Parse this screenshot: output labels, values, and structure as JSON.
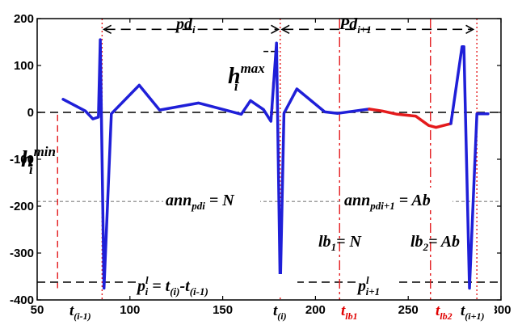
{
  "chart_data": {
    "type": "line",
    "xlim": [
      50,
      300
    ],
    "ylim": [
      -400,
      200
    ],
    "xticks": [
      50,
      100,
      150,
      200,
      250,
      300
    ],
    "yticks": [
      200,
      100,
      0,
      -100,
      -200,
      -300,
      -400
    ],
    "grid": false,
    "colors": {
      "signal": "#1f1fd8",
      "abnormal": "#e41a1c",
      "marker_red": "#e41a1c",
      "black": "#000000"
    },
    "series": [
      {
        "color": "#1f1fd8",
        "x": [
          64,
          76,
          80,
          83,
          84,
          86,
          90,
          105,
          116,
          137,
          160,
          165,
          172,
          176,
          179,
          181,
          183,
          190,
          205,
          212,
          229
        ],
        "y": [
          28,
          3,
          -14,
          -10,
          155,
          -375,
          -3,
          58,
          5,
          20,
          -4,
          25,
          6,
          -19,
          148,
          -379,
          -2,
          50,
          1,
          -2,
          7
        ]
      },
      {
        "color": "#e41a1c",
        "x": [
          229,
          236,
          244,
          254,
          261,
          265,
          273
        ],
        "y": [
          7,
          3,
          -4,
          -8,
          -28,
          -32,
          -24
        ]
      },
      {
        "color": "#1f1fd8",
        "x": [
          273,
          279,
          280,
          283,
          287,
          293
        ],
        "y": [
          -24,
          140,
          140,
          -375,
          -3,
          -3
        ]
      }
    ],
    "baseline_y": 0,
    "dashed_levels": [
      {
        "y": -190,
        "style": "gray"
      },
      {
        "y": -362,
        "style": "black"
      }
    ],
    "red_verticals": [
      {
        "x": 61,
        "y_from": -5,
        "y_to": -375,
        "style": "dashed"
      },
      {
        "x": 85,
        "y_from": 200,
        "y_to": -400,
        "style": "dotted"
      },
      {
        "x": 181,
        "y_from": 200,
        "y_to": -400,
        "style": "dotted"
      },
      {
        "x": 177,
        "y_from": 65,
        "y_to": -5,
        "style": "dashed"
      },
      {
        "x": 213,
        "y_from": 200,
        "y_to": -400,
        "style": "dashdot"
      },
      {
        "x": 262,
        "y_from": 200,
        "y_to": -400,
        "style": "dashdot"
      },
      {
        "x": 287,
        "y_from": 200,
        "y_to": -400,
        "style": "dotted"
      }
    ],
    "h_max_bar": {
      "x1": 172,
      "x2": 180,
      "y": 130
    },
    "intervals": [
      {
        "x1": 86,
        "x2": 180,
        "y": 177
      },
      {
        "x1": 182,
        "x2": 285,
        "y": 177
      }
    ],
    "annotations": {
      "pd_i": "pd",
      "pd_i_sub": "i",
      "Pd_i1": "Pd",
      "Pd_i1_sub": "i+1",
      "h_max": "h",
      "h_max_sub": "i",
      "h_max_sup": "max",
      "h_min": "h",
      "h_min_sub": "i",
      "h_min_sup": "min",
      "ann_pdi": "ann",
      "ann_pdi_sub": "pdi",
      "ann_pdi_eq": " = N",
      "ann_pdi1": "ann",
      "ann_pdi1_sub": "pdi+1",
      "ann_pdi1_eq": " = Ab",
      "lb1": "lb",
      "lb1_sub": "1",
      "lb1_eq": "= N",
      "lb2": "lb",
      "lb2_sub": "2",
      "lb2_eq": "= Ab",
      "pil_p": "p",
      "pil_sub": "i",
      "pil_sup": "l",
      "pil_eq": " = t",
      "pil_t1_sub": "(i)",
      "pil_minus": "-t",
      "pil_t2_sub": "(i-1)",
      "pi1l_p": "p",
      "pi1l_sub": "i+1",
      "pi1l_sup": "l",
      "x_t_im1": "t",
      "x_t_im1_sub": "(i-1)",
      "x_t_i": "t",
      "x_t_i_sub": "(i)",
      "x_tlb1": "t",
      "x_tlb1_sub": "lb1",
      "x_tlb2": "t",
      "x_tlb2_sub": "lb2",
      "x_t_ip1": "t",
      "x_t_ip1_sub": "(i+1)"
    }
  }
}
